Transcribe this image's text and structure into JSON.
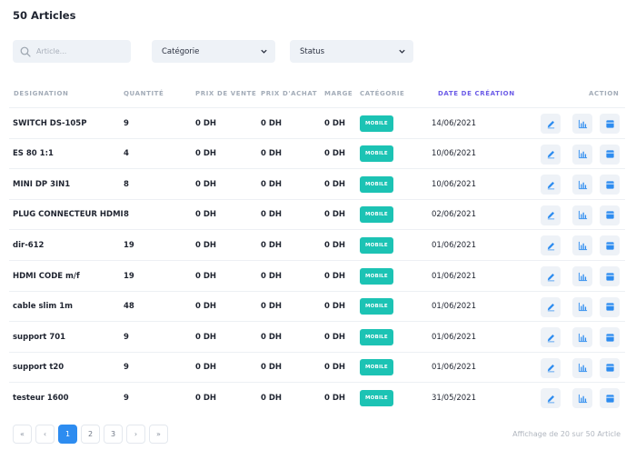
{
  "page": {
    "title": "50 Articles"
  },
  "filters": {
    "search_placeholder": "Article...",
    "category_label": "Catégorie",
    "status_label": "Status"
  },
  "table": {
    "headers": {
      "designation": "DESIGNATION",
      "quantite": "QUANTITÉ",
      "prix_vente": "PRIX DE VENTE",
      "prix_achat": "PRIX D'ACHAT",
      "marge": "MARGE",
      "categorie": "CATÉGORIE",
      "date_creation": "DATE DE CRÉATION",
      "action": "ACTION"
    },
    "rows": [
      {
        "designation": "SWITCH DS-105P",
        "quantite": "9",
        "prix_vente": "0 DH",
        "prix_achat": "0 DH",
        "marge": "0 DH",
        "categorie": "MOBILE",
        "date": "14/06/2021"
      },
      {
        "designation": "ES 80 1:1",
        "quantite": "4",
        "prix_vente": "0 DH",
        "prix_achat": "0 DH",
        "marge": "0 DH",
        "categorie": "MOBILE",
        "date": "10/06/2021"
      },
      {
        "designation": "MINI DP 3IN1",
        "quantite": "8",
        "prix_vente": "0 DH",
        "prix_achat": "0 DH",
        "marge": "0 DH",
        "categorie": "MOBILE",
        "date": "10/06/2021"
      },
      {
        "designation": "PLUG CONNECTEUR HDMI",
        "quantite": "8",
        "prix_vente": "0 DH",
        "prix_achat": "0 DH",
        "marge": "0 DH",
        "categorie": "MOBILE",
        "date": "02/06/2021"
      },
      {
        "designation": "dir-612",
        "quantite": "19",
        "prix_vente": "0 DH",
        "prix_achat": "0 DH",
        "marge": "0 DH",
        "categorie": "MOBILE",
        "date": "01/06/2021"
      },
      {
        "designation": "HDMI CODE m/f",
        "quantite": "19",
        "prix_vente": "0 DH",
        "prix_achat": "0 DH",
        "marge": "0 DH",
        "categorie": "MOBILE",
        "date": "01/06/2021"
      },
      {
        "designation": "cable slim 1m",
        "quantite": "48",
        "prix_vente": "0 DH",
        "prix_achat": "0 DH",
        "marge": "0 DH",
        "categorie": "MOBILE",
        "date": "01/06/2021"
      },
      {
        "designation": "support 701",
        "quantite": "9",
        "prix_vente": "0 DH",
        "prix_achat": "0 DH",
        "marge": "0 DH",
        "categorie": "MOBILE",
        "date": "01/06/2021"
      },
      {
        "designation": "support t20",
        "quantite": "9",
        "prix_vente": "0 DH",
        "prix_achat": "0 DH",
        "marge": "0 DH",
        "categorie": "MOBILE",
        "date": "01/06/2021"
      },
      {
        "designation": "testeur 1600",
        "quantite": "9",
        "prix_vente": "0 DH",
        "prix_achat": "0 DH",
        "marge": "0 DH",
        "categorie": "MOBILE",
        "date": "31/05/2021"
      }
    ],
    "action_icons": [
      "edit-icon",
      "stats-icon",
      "archive-icon"
    ]
  },
  "pagination": {
    "first": "«",
    "prev": "‹",
    "pages": [
      "1",
      "2",
      "3"
    ],
    "active_page": "1",
    "next": "›",
    "last": "»",
    "info": "Affichage de 20 sur 50 Article"
  },
  "colors": {
    "accent": "#2d8cf0",
    "badge": "#1cc3b4",
    "active_header": "#6c5ce7"
  }
}
